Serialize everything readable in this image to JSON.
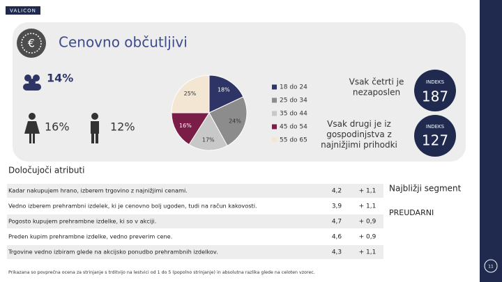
{
  "logo": "VALICON",
  "title": "Cenovno občutljivi",
  "stats": {
    "group": "14%",
    "women": "16%",
    "men": "12%"
  },
  "chart_data": {
    "type": "pie",
    "categories": [
      "18 do 24",
      "25 do 34",
      "35 do 44",
      "45 do 54",
      "55 do 65"
    ],
    "values": [
      18,
      24,
      17,
      16,
      25
    ],
    "value_labels": [
      "18%",
      "24%",
      "17%",
      "16%",
      "25%"
    ],
    "colors": [
      "#2e3566",
      "#8c8c8c",
      "#c8c8c8",
      "#7a1e48",
      "#f3e6d2"
    ]
  },
  "facts": [
    {
      "text": "Vsak četrti je nezaposlen",
      "index_label": "INDEKS",
      "index": "187"
    },
    {
      "text": "Vsak drugi je iz gospodinjstva z najnižjimi prihodki",
      "index_label": "INDEKS",
      "index": "127"
    }
  ],
  "table": {
    "title": "Določujoči atributi",
    "rows": [
      [
        "Kadar nakupujem hrano, izberem trgovino z najnižjimi cenami.",
        "4,2",
        "+ 1,1"
      ],
      [
        "Vedno izberem prehrambni izdelek, ki je cenovno bolj ugoden, tudi na račun kakovosti.",
        "3,9",
        "+ 1,1"
      ],
      [
        "Pogosto kupujem prehrambne izdelke, ki so v akciji.",
        "4,7",
        "+ 0,9"
      ],
      [
        "Preden kupim prehrambne izdelke, vedno preverim cene.",
        "4,6",
        "+ 0,9"
      ],
      [
        "Trgovine vedno izbiram glede na akcijsko ponudbo prehrambnih izdelkov.",
        "4,3",
        "+ 1,1"
      ]
    ]
  },
  "nearest": {
    "label": "Najbližji segment",
    "segment": "PREUDARNI"
  },
  "footnote": "Prikazana so povprečna ocena za strinjanje s trditvijo na lestvici od 1 do 5 (popolno strinjanje) in absolutna razlika glede na celoten vzorec.",
  "page": "11"
}
